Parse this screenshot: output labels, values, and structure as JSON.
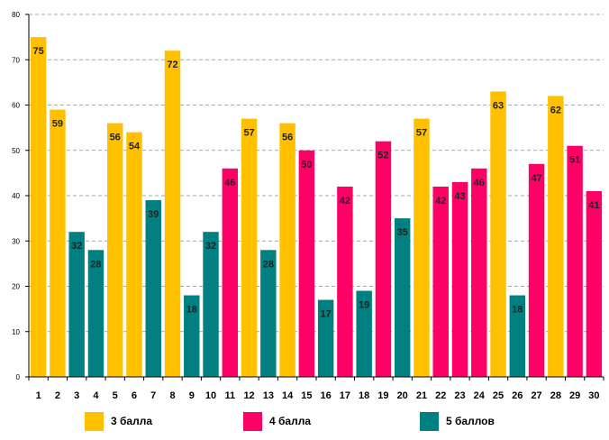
{
  "chart_data": {
    "type": "bar",
    "title": "",
    "xlabel": "",
    "ylabel": "",
    "ylim": [
      0,
      80
    ],
    "yticks": [
      0,
      10,
      20,
      30,
      40,
      50,
      60,
      70,
      80
    ],
    "grid": true,
    "categories": [
      "1",
      "2",
      "3",
      "4",
      "5",
      "6",
      "7",
      "8",
      "9",
      "10",
      "11",
      "12",
      "13",
      "14",
      "15",
      "16",
      "17",
      "18",
      "19",
      "20",
      "21",
      "22",
      "23",
      "24",
      "25",
      "26",
      "27",
      "28",
      "29",
      "30"
    ],
    "values": [
      75,
      59,
      32,
      28,
      56,
      54,
      39,
      72,
      18,
      32,
      46,
      57,
      28,
      56,
      50,
      17,
      42,
      19,
      52,
      35,
      57,
      42,
      43,
      46,
      63,
      18,
      47,
      62,
      51,
      41
    ],
    "series_index": [
      0,
      0,
      2,
      2,
      0,
      0,
      2,
      0,
      2,
      2,
      1,
      0,
      2,
      0,
      1,
      2,
      1,
      2,
      1,
      2,
      0,
      1,
      1,
      1,
      0,
      2,
      1,
      0,
      1,
      1
    ],
    "legend_position": "bottom",
    "series": [
      {
        "name": "3 балла",
        "color": "#FFC000"
      },
      {
        "name": "4 балла",
        "color": "#FF0066"
      },
      {
        "name": "5 баллов",
        "color": "#008080"
      }
    ]
  }
}
